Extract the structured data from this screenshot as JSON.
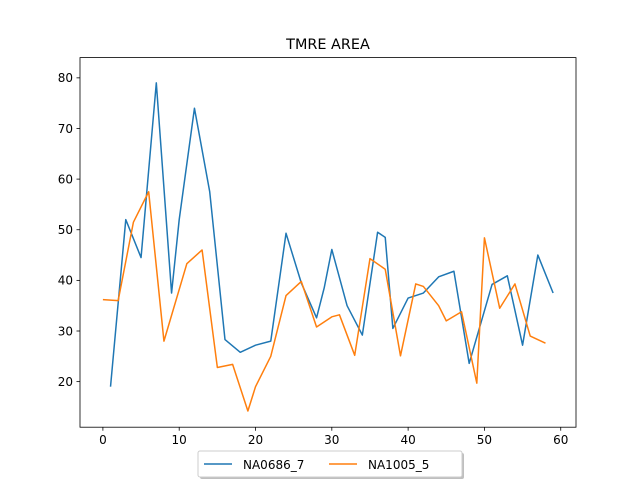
{
  "chart_data": {
    "type": "line",
    "title": "TMRE AREA",
    "xlabel": "",
    "ylabel": "",
    "xlim": [
      -3,
      62
    ],
    "ylim": [
      11,
      84
    ],
    "xticks": [
      0,
      10,
      20,
      30,
      40,
      50,
      60
    ],
    "yticks": [
      20,
      30,
      40,
      50,
      60,
      70,
      80
    ],
    "grid": false,
    "legend_position": "bottom-center",
    "series": [
      {
        "name": "NA0686_7",
        "color": "#1f77b4",
        "x": [
          1,
          3,
          5,
          7,
          9,
          10,
          12,
          14,
          16,
          18,
          20,
          22,
          24,
          26,
          28,
          29,
          30,
          32,
          34,
          36,
          37,
          38,
          40,
          42,
          44,
          46,
          48,
          51,
          53,
          55,
          57,
          59
        ],
        "y": [
          19.0,
          52.0,
          44.5,
          79.0,
          37.5,
          52.0,
          74.0,
          57.5,
          28.3,
          25.8,
          27.2,
          28.0,
          49.3,
          39.5,
          32.6,
          38.5,
          46.1,
          35.0,
          29.2,
          49.5,
          48.5,
          30.5,
          36.5,
          37.5,
          40.7,
          41.8,
          23.6,
          39.2,
          40.9,
          27.2,
          45.0,
          37.5
        ]
      },
      {
        "name": "NA1005_5",
        "color": "#ff7f0e",
        "x": [
          0,
          2,
          4,
          6,
          8,
          11,
          13,
          15,
          17,
          19,
          20,
          22,
          24,
          26,
          28,
          30,
          31,
          33,
          35,
          37,
          39,
          41,
          42,
          44,
          45,
          47,
          49,
          50,
          52,
          54,
          56,
          58
        ],
        "y": [
          36.2,
          36.0,
          51.5,
          57.5,
          28.0,
          43.3,
          46.0,
          22.8,
          23.4,
          14.2,
          19.0,
          25.0,
          37.0,
          39.8,
          30.8,
          32.8,
          33.2,
          25.2,
          44.3,
          42.2,
          25.1,
          39.3,
          38.8,
          35.0,
          32.0,
          33.8,
          19.7,
          48.4,
          34.5,
          39.3,
          29.0,
          27.6
        ]
      }
    ]
  }
}
